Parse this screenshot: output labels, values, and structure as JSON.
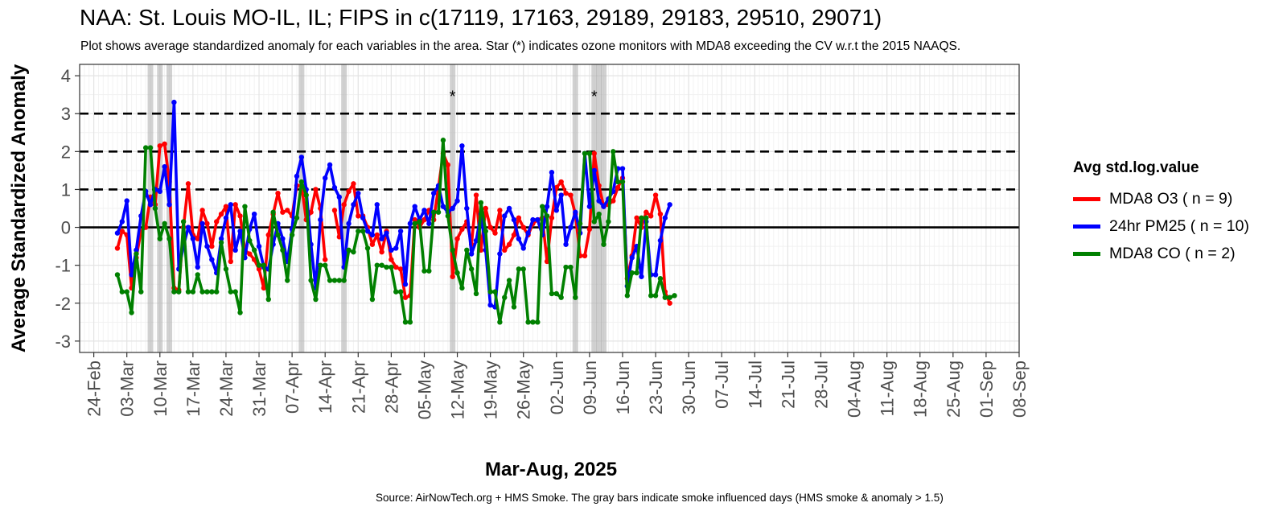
{
  "chart_data": {
    "type": "line",
    "title": "NAA: St. Louis MO-IL, IL; FIPS in c(17119, 17163, 29189, 29183, 29510, 29071)",
    "subtitle": "Plot shows average standardized anomaly for each variables in the area. Star (*) indicates ozone monitors with MDA8 exceeding the CV w.r.t the 2015 NAAQS.",
    "xlabel": "Mar-Aug, 2025",
    "ylabel": "Average Standardized Anomaly",
    "caption": "Source: AirNowTech.org + HMS Smoke. The gray bars indicate smoke influenced days (HMS smoke & anomaly > 1.5)",
    "legend_title": "Avg std.log.value",
    "legend_position": "right",
    "grid": true,
    "ylim": [
      -3.3,
      4.3
    ],
    "xlim": [
      "2025-02-21",
      "2025-09-08"
    ],
    "y_ticks": [
      -3,
      -2,
      -1,
      0,
      1,
      2,
      3,
      4
    ],
    "x_ticks": [
      "2025-02-24",
      "2025-03-03",
      "2025-03-10",
      "2025-03-17",
      "2025-03-24",
      "2025-03-31",
      "2025-04-07",
      "2025-04-14",
      "2025-04-21",
      "2025-04-28",
      "2025-05-05",
      "2025-05-12",
      "2025-05-19",
      "2025-05-26",
      "2025-06-02",
      "2025-06-09",
      "2025-06-16",
      "2025-06-23",
      "2025-06-30",
      "2025-07-07",
      "2025-07-14",
      "2025-07-21",
      "2025-07-28",
      "2025-08-04",
      "2025-08-11",
      "2025-08-18",
      "2025-08-25",
      "2025-09-01",
      "2025-09-08"
    ],
    "x_tick_labels": [
      "24-Feb",
      "03-Mar",
      "10-Mar",
      "17-Mar",
      "24-Mar",
      "31-Mar",
      "07-Apr",
      "14-Apr",
      "21-Apr",
      "28-Apr",
      "05-May",
      "12-May",
      "19-May",
      "26-May",
      "02-Jun",
      "09-Jun",
      "16-Jun",
      "23-Jun",
      "30-Jun",
      "07-Jul",
      "14-Jul",
      "21-Jul",
      "28-Jul",
      "04-Aug",
      "11-Aug",
      "18-Aug",
      "25-Aug",
      "01-Sep",
      "08-Sep"
    ],
    "hlines": {
      "solid": [
        0
      ],
      "dashed": [
        1,
        2,
        3
      ]
    },
    "x_start": "2025-03-01",
    "smoke_days": [
      "2025-03-08",
      "2025-03-10",
      "2025-03-12",
      "2025-04-09",
      "2025-04-18",
      "2025-05-11",
      "2025-06-06",
      "2025-06-10",
      "2025-06-11",
      "2025-06-12"
    ],
    "exceedance_stars": [
      {
        "date": "2025-05-11",
        "y": 3.5,
        "label": "*"
      },
      {
        "date": "2025-06-10",
        "y": 3.5,
        "label": "*"
      }
    ],
    "series": [
      {
        "name": "MDA8 O3 ( n = 9)",
        "color": "#ff0000",
        "values": [
          -0.55,
          -0.1,
          -0.2,
          -1.6,
          -0.8,
          -0.1,
          0.0,
          0.8,
          0.6,
          2.15,
          2.2,
          1.2,
          -1.6,
          -1.65,
          0.0,
          1.15,
          -0.2,
          -0.3,
          0.45,
          0.1,
          -0.5,
          0.15,
          0.35,
          0.55,
          -0.9,
          0.6,
          0.3,
          -0.6,
          -0.7,
          -0.85,
          -1.1,
          -1.6,
          -0.2,
          0.35,
          0.9,
          0.4,
          0.45,
          0.3,
          1.1,
          1.1,
          0.2,
          0.4,
          1.0,
          0.5,
          -0.85,
          null,
          0.45,
          -0.25,
          0.6,
          0.95,
          1.15,
          0.3,
          0.3,
          0.0,
          -0.45,
          -0.2,
          -0.65,
          -0.1,
          -0.85,
          -1.05,
          -1.1,
          -1.85,
          -1.8,
          0.2,
          0.0,
          0.2,
          0.45,
          0.2,
          1.05,
          1.95,
          1.65,
          -1.3,
          -0.3,
          -0.05,
          0.15,
          -0.45,
          0.85,
          -0.6,
          0.5,
          0.0,
          -0.15,
          0.45,
          -0.6,
          -0.45,
          -0.2,
          0.25,
          0.0,
          -0.2,
          0.1,
          0.2,
          0.25,
          -0.9,
          0.25,
          1.05,
          1.2,
          0.9,
          0.85,
          0.35,
          -0.75,
          -0.75,
          -0.05,
          1.95,
          1.1,
          0.55,
          0.6,
          0.7,
          1.05,
          1.3,
          -1.35,
          -0.75,
          0.25,
          0.0,
          0.4,
          0.3,
          0.85,
          0.35,
          -1.7,
          -2.0
        ]
      },
      {
        "name": "24hr PM25 ( n = 10)",
        "color": "#0000ff",
        "values": [
          -0.15,
          0.15,
          0.7,
          -1.25,
          -0.6,
          0.3,
          0.95,
          0.6,
          1.0,
          0.95,
          1.6,
          0.6,
          3.3,
          -1.1,
          -0.5,
          0.0,
          -0.3,
          -1.05,
          0.1,
          -0.5,
          -0.85,
          -1.2,
          -0.3,
          0.25,
          0.6,
          -0.6,
          -0.1,
          -0.8,
          -0.05,
          0.35,
          -0.5,
          -1.05,
          -1.1,
          -0.45,
          0.1,
          -0.3,
          -0.9,
          -0.05,
          1.35,
          1.85,
          1.0,
          -0.45,
          -1.6,
          0.2,
          1.3,
          1.65,
          1.05,
          0.8,
          -1.05,
          0.1,
          0.6,
          0.9,
          0.25,
          -0.1,
          -0.2,
          0.6,
          -0.3,
          -0.15,
          -0.6,
          -0.55,
          -0.1,
          -1.5,
          0.1,
          0.55,
          0.2,
          0.45,
          0.1,
          0.9,
          1.1,
          0.55,
          0.4,
          0.5,
          0.7,
          2.15,
          0.5,
          -0.7,
          -0.35,
          0.35,
          -0.6,
          -2.05,
          -2.1,
          -0.7,
          0.3,
          0.5,
          0.2,
          -0.3,
          -0.55,
          -0.15,
          0.2,
          0.2,
          -0.2,
          0.55,
          1.45,
          0.45,
          0.85,
          -0.45,
          0.0,
          0.4,
          -0.15,
          1.95,
          0.55,
          1.5,
          0.7,
          0.55,
          0.75,
          0.95,
          1.55,
          1.55,
          -1.55,
          -0.8,
          -0.5,
          -1.3,
          0.15,
          -1.25,
          -1.25,
          -0.35,
          0.25,
          0.6
        ]
      },
      {
        "name": "MDA8 CO ( n = 2)",
        "color": "#008000",
        "values": [
          -1.25,
          -1.7,
          -1.7,
          -2.25,
          -0.7,
          -1.7,
          2.1,
          2.1,
          0.5,
          -0.3,
          0.1,
          -0.3,
          -1.7,
          -1.7,
          0.15,
          -1.7,
          -1.7,
          -1.25,
          -1.7,
          -1.7,
          -1.7,
          -1.7,
          -0.4,
          -1.1,
          -1.7,
          -1.7,
          -2.25,
          0.55,
          -0.35,
          -0.6,
          -1.0,
          -1.0,
          -1.9,
          0.4,
          -0.2,
          -0.6,
          -1.4,
          -0.2,
          0.25,
          1.2,
          0.85,
          -1.4,
          -1.9,
          -1.0,
          -1.0,
          -1.4,
          -1.4,
          -1.4,
          -1.4,
          -0.6,
          -0.65,
          -0.1,
          -0.1,
          -0.55,
          -1.9,
          -1.0,
          -1.0,
          -1.05,
          -1.05,
          -1.7,
          -1.7,
          -2.5,
          -2.5,
          0.1,
          0.15,
          -1.15,
          -1.15,
          0.4,
          0.4,
          2.3,
          0.3,
          -0.6,
          -1.2,
          -1.6,
          -0.6,
          -1.1,
          -1.75,
          0.65,
          -0.1,
          -1.7,
          -1.7,
          -2.5,
          -1.85,
          -1.4,
          -2.1,
          -1.1,
          -1.1,
          -2.5,
          -2.5,
          -2.5,
          0.55,
          0.3,
          -1.75,
          -1.75,
          -1.85,
          -1.05,
          -1.05,
          -1.85,
          0.1,
          1.95,
          1.95,
          0.15,
          0.35,
          -0.45,
          0.15,
          2.0,
          1.2,
          1.2,
          -1.8,
          -1.2,
          -1.2,
          0.25,
          0.25,
          -1.8,
          -1.8,
          -1.35,
          -1.85,
          -1.85,
          -1.8
        ]
      }
    ]
  }
}
